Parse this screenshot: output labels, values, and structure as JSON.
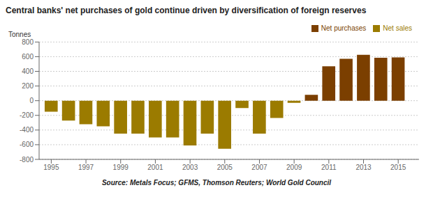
{
  "chart_data": {
    "type": "bar",
    "title": "Central banks' net purchases of gold continue driven by diversification of foreign reserves",
    "y_label": "Tonnes",
    "source": "Source: Metals Focus; GFMS, Thomson Reuters; World Gold Council",
    "x": [
      1995,
      1996,
      1997,
      1998,
      1999,
      2000,
      2001,
      2002,
      2003,
      2004,
      2005,
      2006,
      2007,
      2008,
      2009,
      2010,
      2011,
      2012,
      2013,
      2014,
      2015
    ],
    "series": [
      {
        "name": "Net purchases",
        "color": "#7B3F00",
        "values": [
          null,
          null,
          null,
          null,
          null,
          null,
          null,
          null,
          null,
          null,
          null,
          null,
          null,
          null,
          null,
          80,
          470,
          570,
          625,
          585,
          590
        ]
      },
      {
        "name": "Net sales",
        "color": "#9B7B00",
        "values": [
          -150,
          -270,
          -320,
          -350,
          -450,
          -450,
          -500,
          -500,
          -610,
          -450,
          -655,
          -100,
          -450,
          -235,
          -30,
          null,
          null,
          null,
          null,
          null,
          null
        ]
      }
    ],
    "xlim": [
      1994.3,
      2016.2
    ],
    "xticks": [
      1995,
      1997,
      1999,
      2001,
      2003,
      2005,
      2007,
      2009,
      2011,
      2013,
      2015
    ],
    "ylim": [
      -800,
      800
    ],
    "yticks": [
      -800,
      -600,
      -400,
      -200,
      0,
      200,
      400,
      600,
      800
    ],
    "grid": true,
    "legend": "top right",
    "stacked": true
  }
}
